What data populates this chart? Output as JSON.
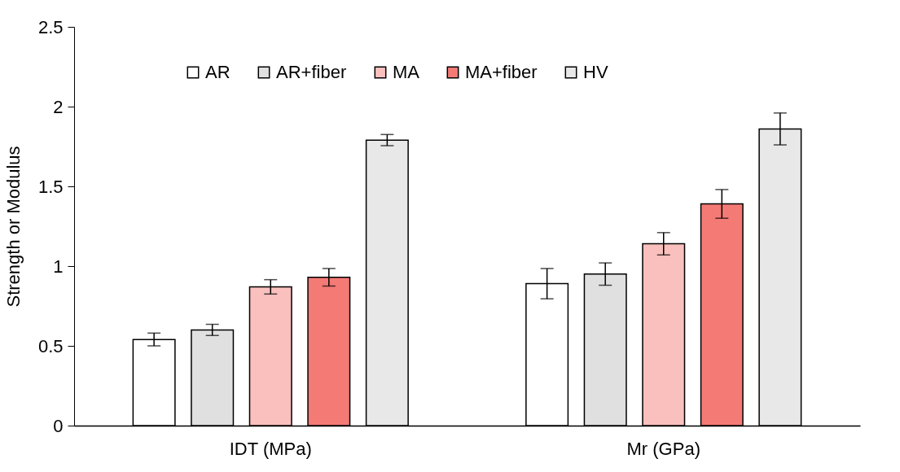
{
  "chart_data": {
    "type": "bar",
    "ylabel": "Strength or Modulus",
    "categories": [
      "IDT (MPa)",
      "Mr (GPa)"
    ],
    "series": [
      {
        "name": "AR",
        "color": "#ffffff",
        "values": [
          0.54,
          0.89
        ],
        "errors": [
          0.04,
          0.095
        ]
      },
      {
        "name": "AR+fiber",
        "color": "#e0e0e0",
        "values": [
          0.6,
          0.95
        ],
        "errors": [
          0.035,
          0.07
        ]
      },
      {
        "name": "MA",
        "color": "#f9c0bd",
        "values": [
          0.87,
          1.14
        ],
        "errors": [
          0.045,
          0.07
        ]
      },
      {
        "name": "MA+fiber",
        "color": "#f47a76",
        "values": [
          0.93,
          1.39
        ],
        "errors": [
          0.055,
          0.09
        ]
      },
      {
        "name": "HV",
        "color": "#e8e8e8",
        "values": [
          1.79,
          1.86
        ],
        "errors": [
          0.035,
          0.1
        ]
      }
    ],
    "ylim": [
      0,
      2.5
    ],
    "yticks": [
      0,
      0.5,
      1,
      1.5,
      2,
      2.5
    ],
    "grid": false,
    "legend": "top"
  }
}
